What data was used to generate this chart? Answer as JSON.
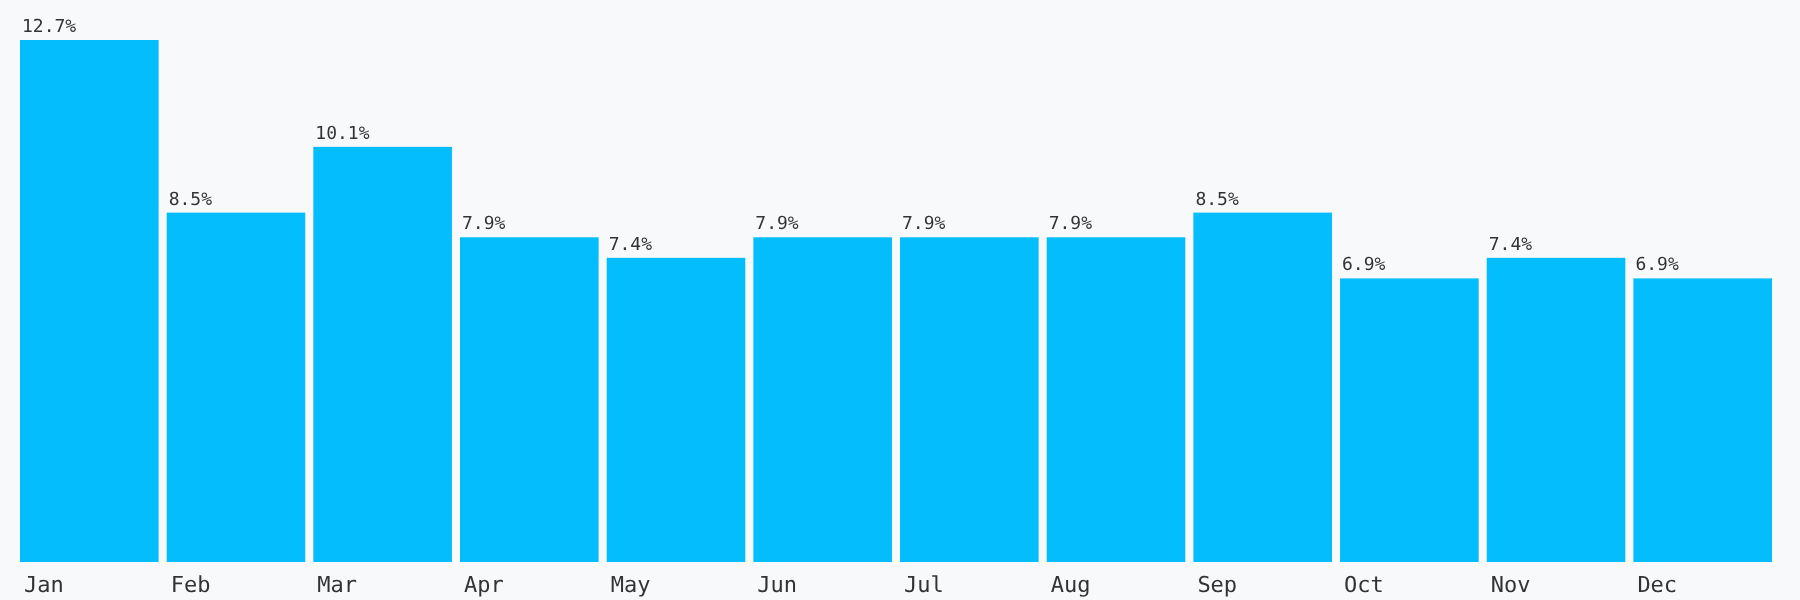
{
  "chart_data": {
    "type": "bar",
    "categories": [
      "Jan",
      "Feb",
      "Mar",
      "Apr",
      "May",
      "Jun",
      "Jul",
      "Aug",
      "Sep",
      "Oct",
      "Nov",
      "Dec"
    ],
    "values": [
      12.7,
      8.5,
      10.1,
      7.9,
      7.4,
      7.9,
      7.9,
      7.9,
      8.5,
      6.9,
      7.4,
      6.9
    ],
    "value_labels": [
      "12.7%",
      "8.5%",
      "10.1%",
      "7.9%",
      "7.4%",
      "7.9%",
      "7.9%",
      "7.9%",
      "8.5%",
      "6.9%",
      "7.4%",
      "6.9%"
    ],
    "color": "#04bdfc"
  }
}
